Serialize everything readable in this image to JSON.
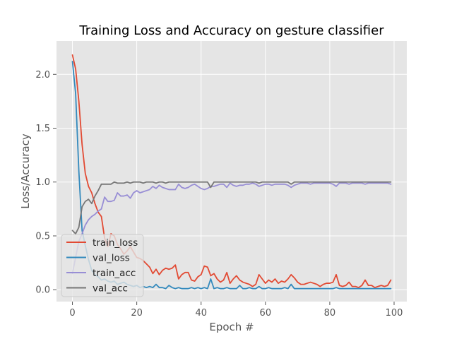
{
  "chart_data": {
    "type": "line",
    "title": "Training Loss and Accuracy on gesture classifier",
    "xlabel": "Epoch #",
    "ylabel": "Loss/Accuracy",
    "xlim": [
      -4.95,
      103.95
    ],
    "ylim": [
      -0.11,
      2.31
    ],
    "x_ticks": [
      0,
      20,
      40,
      60,
      80,
      100
    ],
    "y_ticks": [
      0.0,
      0.5,
      1.0,
      1.5,
      2.0
    ],
    "x_tick_labels": [
      "0",
      "20",
      "40",
      "60",
      "80",
      "100"
    ],
    "y_tick_labels": [
      "0.0",
      "0.5",
      "1.0",
      "1.5",
      "2.0"
    ],
    "grid": true,
    "legend_position": "lower-left",
    "x": [
      0,
      1,
      2,
      3,
      4,
      5,
      6,
      7,
      8,
      9,
      10,
      11,
      12,
      13,
      14,
      15,
      16,
      17,
      18,
      19,
      20,
      21,
      22,
      23,
      24,
      25,
      26,
      27,
      28,
      29,
      30,
      31,
      32,
      33,
      34,
      35,
      36,
      37,
      38,
      39,
      40,
      41,
      42,
      43,
      44,
      45,
      46,
      47,
      48,
      49,
      50,
      51,
      52,
      53,
      54,
      55,
      56,
      57,
      58,
      59,
      60,
      61,
      62,
      63,
      64,
      65,
      66,
      67,
      68,
      69,
      70,
      71,
      72,
      73,
      74,
      75,
      76,
      77,
      78,
      79,
      80,
      81,
      82,
      83,
      84,
      85,
      86,
      87,
      88,
      89,
      90,
      91,
      92,
      93,
      94,
      95,
      96,
      97,
      98,
      99
    ],
    "series": [
      {
        "name": "train_loss",
        "color": "#E24A33",
        "values": [
          2.18,
          2.05,
          1.75,
          1.35,
          1.08,
          0.96,
          0.9,
          0.8,
          0.72,
          0.68,
          0.48,
          0.4,
          0.52,
          0.5,
          0.42,
          0.38,
          0.33,
          0.36,
          0.4,
          0.35,
          0.3,
          0.29,
          0.27,
          0.24,
          0.21,
          0.15,
          0.19,
          0.14,
          0.18,
          0.2,
          0.19,
          0.2,
          0.23,
          0.1,
          0.14,
          0.16,
          0.16,
          0.09,
          0.08,
          0.12,
          0.14,
          0.22,
          0.21,
          0.13,
          0.15,
          0.1,
          0.07,
          0.09,
          0.16,
          0.06,
          0.1,
          0.13,
          0.09,
          0.07,
          0.06,
          0.05,
          0.03,
          0.05,
          0.14,
          0.1,
          0.06,
          0.09,
          0.07,
          0.1,
          0.06,
          0.08,
          0.07,
          0.1,
          0.14,
          0.11,
          0.07,
          0.05,
          0.05,
          0.06,
          0.07,
          0.06,
          0.05,
          0.03,
          0.05,
          0.06,
          0.06,
          0.07,
          0.14,
          0.04,
          0.03,
          0.04,
          0.07,
          0.03,
          0.03,
          0.02,
          0.04,
          0.09,
          0.04,
          0.04,
          0.02,
          0.03,
          0.04,
          0.03,
          0.04,
          0.09
        ]
      },
      {
        "name": "val_loss",
        "color": "#348ABD",
        "values": [
          2.12,
          1.82,
          1.1,
          0.55,
          0.41,
          0.28,
          0.18,
          0.14,
          0.12,
          0.09,
          0.1,
          0.08,
          0.07,
          0.08,
          0.05,
          0.06,
          0.07,
          0.05,
          0.04,
          0.03,
          0.04,
          0.02,
          0.03,
          0.02,
          0.03,
          0.02,
          0.05,
          0.02,
          0.02,
          0.01,
          0.04,
          0.02,
          0.01,
          0.02,
          0.01,
          0.01,
          0.01,
          0.02,
          0.01,
          0.02,
          0.01,
          0.02,
          0.01,
          0.1,
          0.01,
          0.02,
          0.01,
          0.01,
          0.02,
          0.01,
          0.01,
          0.01,
          0.04,
          0.01,
          0.01,
          0.02,
          0.01,
          0.01,
          0.03,
          0.01,
          0.01,
          0.02,
          0.01,
          0.01,
          0.01,
          0.01,
          0.02,
          0.01,
          0.05,
          0.01,
          0.01,
          0.01,
          0.01,
          0.01,
          0.01,
          0.01,
          0.01,
          0.01,
          0.01,
          0.01,
          0.01,
          0.01,
          0.02,
          0.01,
          0.01,
          0.01,
          0.01,
          0.01,
          0.01,
          0.01,
          0.01,
          0.01,
          0.01,
          0.01,
          0.01,
          0.01,
          0.01,
          0.01,
          0.01,
          0.01
        ]
      },
      {
        "name": "train_acc",
        "color": "#988ED5",
        "values": [
          0.15,
          0.3,
          0.45,
          0.52,
          0.6,
          0.65,
          0.68,
          0.7,
          0.73,
          0.75,
          0.86,
          0.82,
          0.82,
          0.83,
          0.9,
          0.87,
          0.87,
          0.88,
          0.85,
          0.9,
          0.92,
          0.9,
          0.91,
          0.92,
          0.93,
          0.96,
          0.94,
          0.97,
          0.95,
          0.94,
          0.93,
          0.93,
          0.93,
          0.98,
          0.95,
          0.94,
          0.95,
          0.97,
          0.98,
          0.96,
          0.94,
          0.93,
          0.94,
          0.96,
          0.96,
          0.97,
          0.98,
          0.98,
          0.95,
          0.99,
          0.97,
          0.96,
          0.97,
          0.97,
          0.98,
          0.98,
          0.99,
          0.98,
          0.96,
          0.97,
          0.98,
          0.98,
          0.97,
          0.98,
          0.98,
          0.98,
          0.98,
          0.97,
          0.95,
          0.97,
          0.98,
          0.99,
          0.99,
          0.99,
          0.98,
          0.99,
          0.99,
          0.99,
          0.99,
          0.99,
          0.99,
          0.98,
          0.96,
          0.99,
          0.99,
          0.99,
          0.98,
          0.99,
          0.99,
          0.99,
          0.99,
          0.98,
          0.99,
          0.99,
          0.99,
          0.99,
          0.99,
          0.99,
          0.99,
          0.98
        ]
      },
      {
        "name": "val_acc",
        "color": "#777777",
        "values": [
          0.55,
          0.52,
          0.58,
          0.77,
          0.82,
          0.84,
          0.8,
          0.87,
          0.92,
          0.98,
          0.98,
          0.98,
          0.98,
          1.0,
          0.99,
          0.99,
          0.99,
          1.0,
          0.99,
          1.0,
          1.0,
          1.0,
          0.99,
          1.0,
          1.0,
          1.0,
          0.99,
          1.0,
          1.0,
          0.99,
          1.0,
          1.0,
          1.0,
          1.0,
          1.0,
          1.0,
          1.0,
          1.0,
          1.0,
          1.0,
          1.0,
          1.0,
          1.0,
          0.95,
          1.0,
          1.0,
          1.0,
          1.0,
          1.0,
          1.0,
          1.0,
          1.0,
          1.0,
          1.0,
          1.0,
          1.0,
          1.0,
          1.0,
          0.99,
          1.0,
          1.0,
          1.0,
          1.0,
          1.0,
          1.0,
          1.0,
          1.0,
          1.0,
          0.98,
          1.0,
          1.0,
          1.0,
          1.0,
          1.0,
          1.0,
          1.0,
          1.0,
          1.0,
          1.0,
          1.0,
          1.0,
          1.0,
          1.0,
          1.0,
          1.0,
          1.0,
          1.0,
          1.0,
          1.0,
          1.0,
          1.0,
          1.0,
          1.0,
          1.0,
          1.0,
          1.0,
          1.0,
          1.0,
          1.0,
          1.0
        ]
      }
    ]
  },
  "colors": {
    "plot_background": "#E5E5E5",
    "grid": "#FFFFFF",
    "legend_background": "#E5E5E5",
    "legend_border": "#CCCCCC"
  }
}
